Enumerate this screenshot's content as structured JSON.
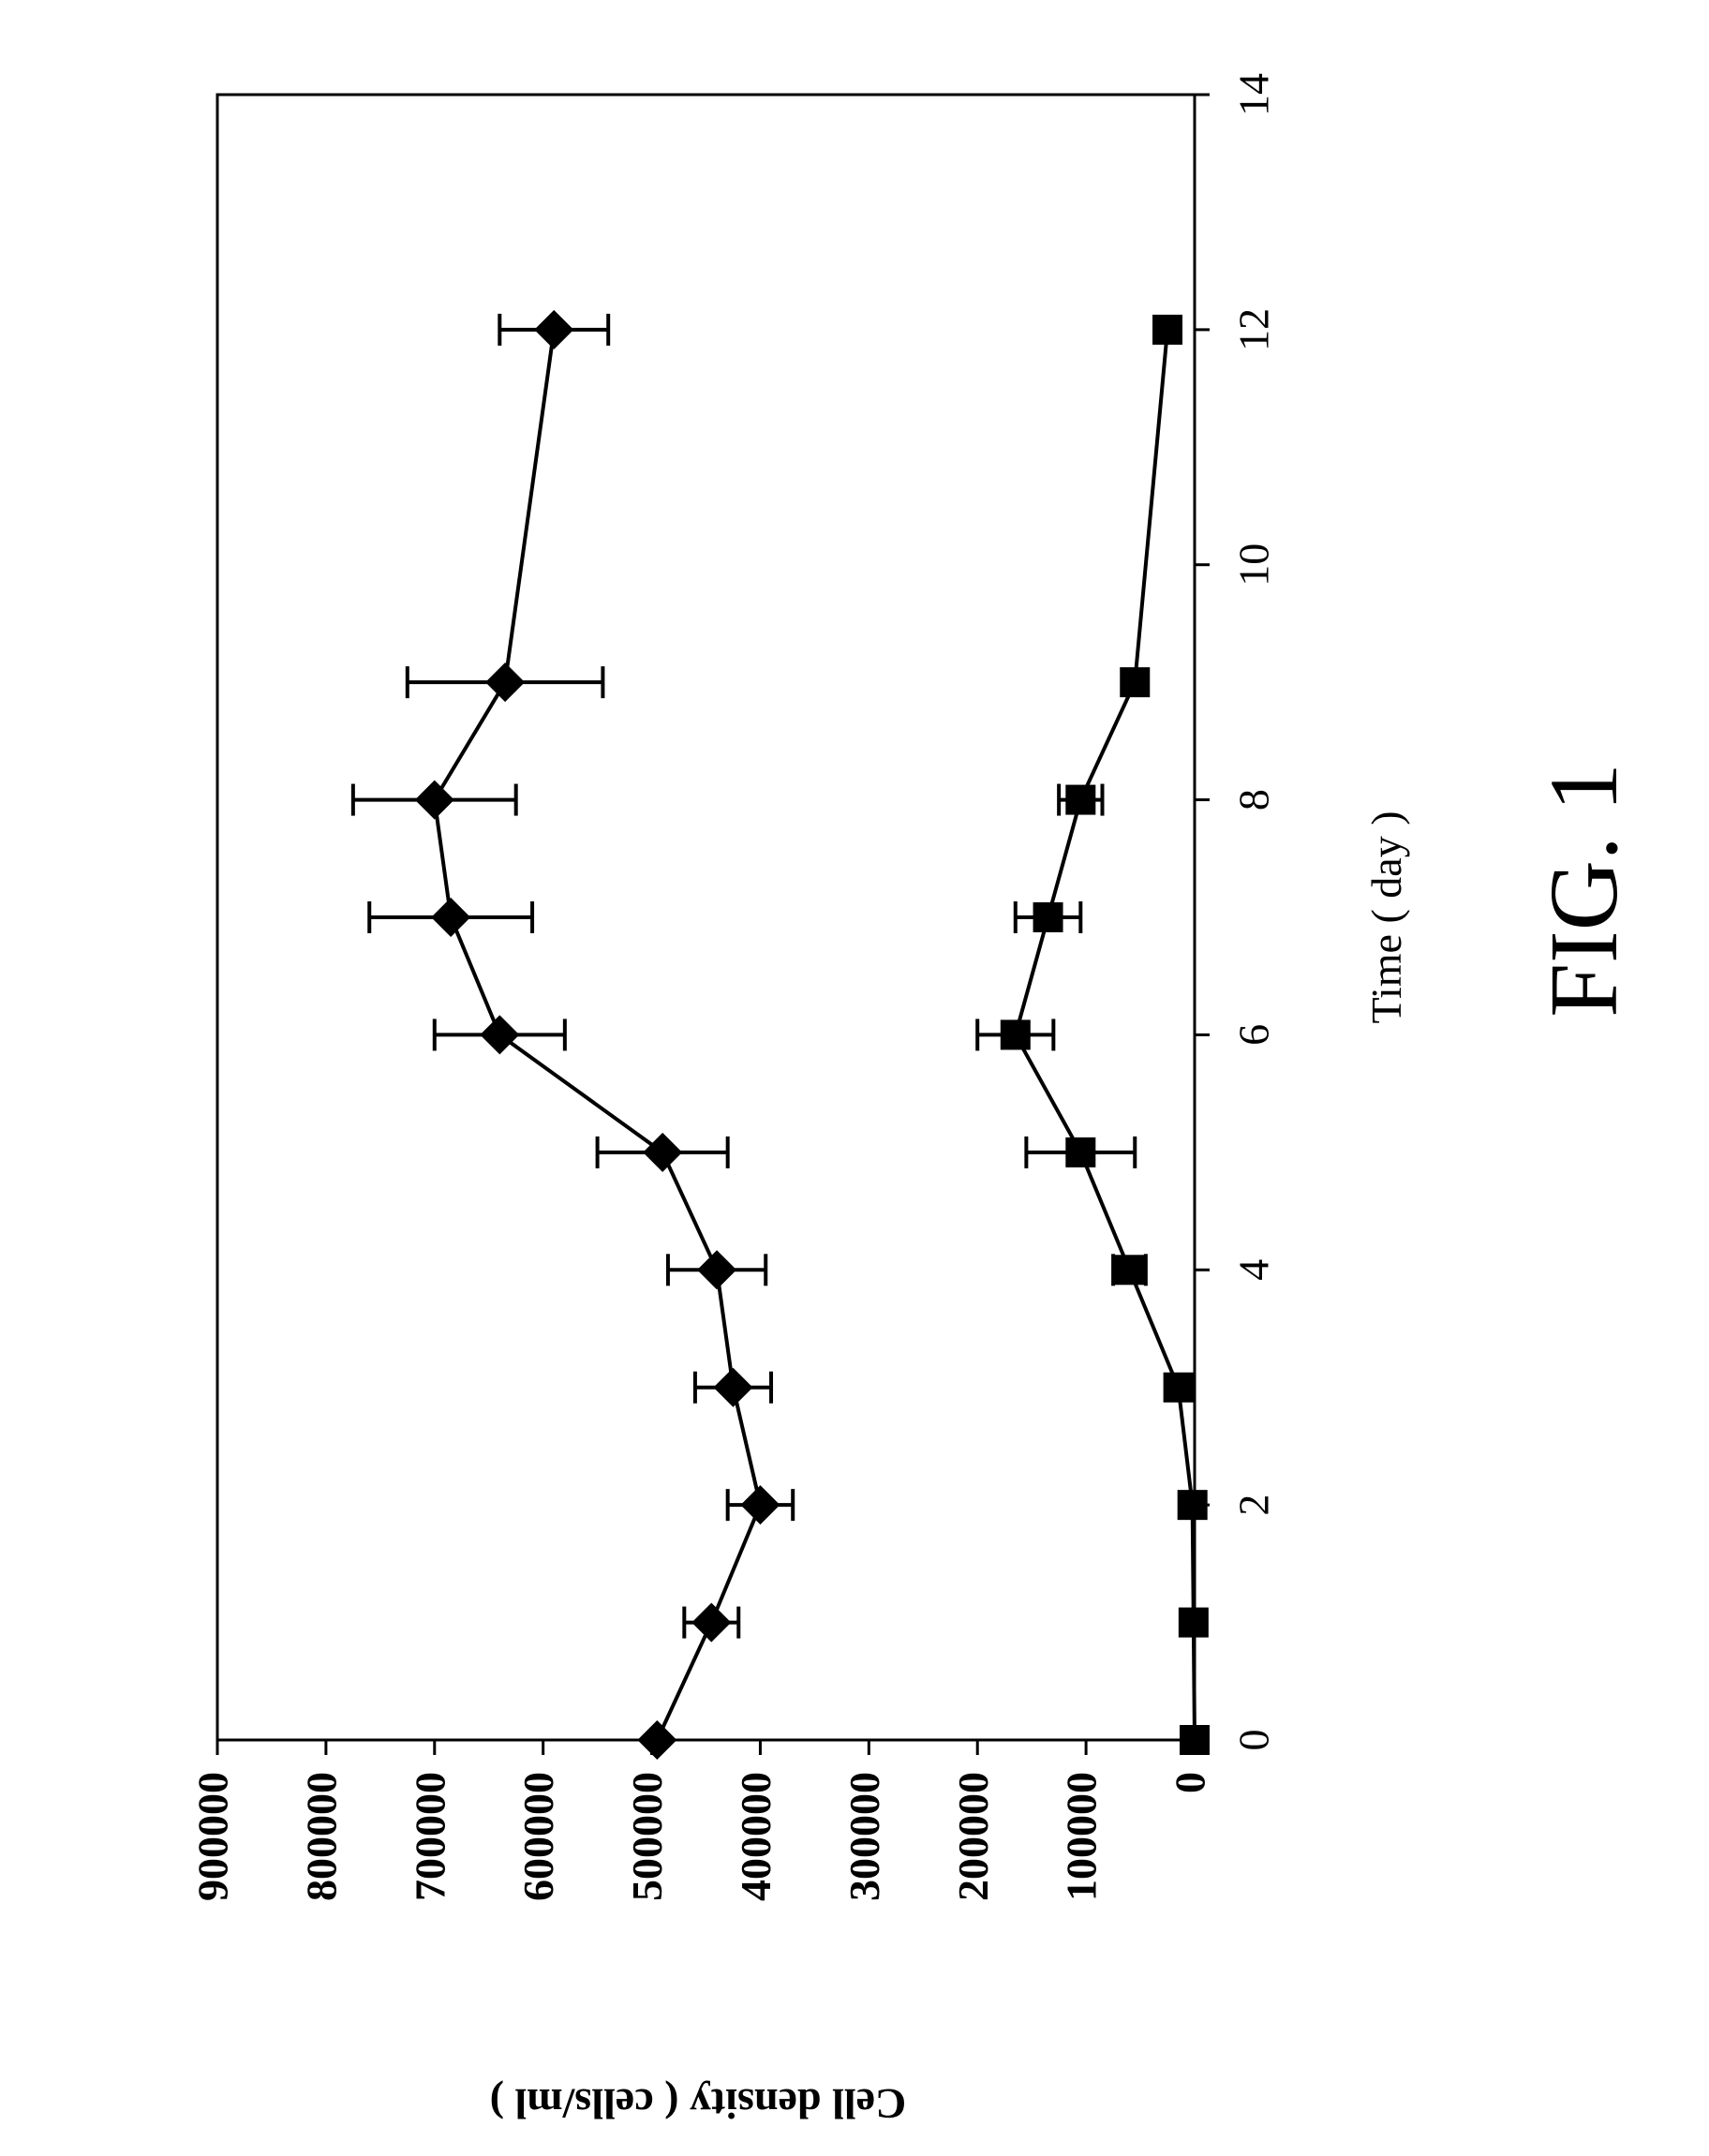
{
  "figure_label": "FIG. 1",
  "chart_data": {
    "type": "line",
    "orientation": "rotated-90-ccw",
    "xlabel": "Time ( day )",
    "ylabel": "Cell density ( cells/ml )",
    "xlim": [
      0,
      14
    ],
    "ylim": [
      0,
      900000
    ],
    "x_ticks": [
      0,
      2,
      4,
      6,
      8,
      10,
      12,
      14
    ],
    "x_tick_labels": [
      "0",
      "2",
      "4",
      "6",
      "8",
      "10",
      "12",
      "14"
    ],
    "y_ticks": [
      0,
      100000,
      200000,
      300000,
      400000,
      500000,
      600000,
      700000,
      800000,
      900000
    ],
    "y_tick_labels": [
      "0",
      "100000",
      "200000",
      "300000",
      "400000",
      "500000",
      "600000",
      "700000",
      "800000",
      "900000"
    ],
    "grid": false,
    "legend": "none",
    "series": [
      {
        "marker": "diamond",
        "color": "#000000",
        "x": [
          0,
          1,
          2,
          3,
          4,
          5,
          6,
          7,
          8,
          9,
          12
        ],
        "y": [
          495000,
          445000,
          400000,
          425000,
          440000,
          490000,
          640000,
          685000,
          700000,
          635000,
          590000
        ],
        "error": [
          0,
          25000,
          30000,
          35000,
          45000,
          60000,
          60000,
          75000,
          75000,
          90000,
          50000
        ]
      },
      {
        "marker": "square",
        "color": "#000000",
        "x": [
          0,
          1,
          2,
          3,
          4,
          5,
          6,
          7,
          8,
          9,
          12
        ],
        "y": [
          0,
          1000,
          2000,
          15000,
          60000,
          105000,
          165000,
          135000,
          105000,
          55000,
          25000
        ],
        "error": [
          0,
          0,
          0,
          0,
          15000,
          50000,
          35000,
          30000,
          20000,
          0,
          0
        ]
      }
    ]
  }
}
